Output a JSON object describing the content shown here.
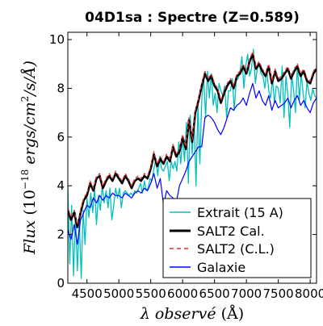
{
  "chart_data": {
    "type": "line",
    "title": "04D1sa : Spectre (Z=0.589)",
    "xlabel": "λ observé (Å)",
    "ylabel": "Flux (10^-18 ergs/cm²/s/Å)",
    "ylabel_parts": {
      "flux": "Flux",
      "open": "(10",
      "exponent": "−18",
      "unit": "ergs/cm",
      "unit_sup": "2",
      "rest": "/s/Å)"
    },
    "xlabel_parts": {
      "lambda": "λ",
      "word": "observé",
      "unit": "(Å)"
    },
    "xlim": [
      4200,
      8100
    ],
    "ylim": [
      0,
      10.3
    ],
    "xticks": [
      4500,
      5000,
      5500,
      6000,
      6500,
      7000,
      7500,
      8000
    ],
    "xtick_labels": [
      "4500",
      "5000",
      "5500",
      "6000",
      "6500",
      "7000",
      "7500",
      "8000"
    ],
    "yticks": [
      0,
      2,
      4,
      6,
      8,
      10
    ],
    "ytick_labels": [
      "0",
      "2",
      "4",
      "6",
      "8",
      "10"
    ],
    "legend_position": "lower-right",
    "series": [
      {
        "name": "Extrait (15 A)",
        "color": "#00bfbf",
        "style": "solid",
        "x": [
          4200,
          4230,
          4260,
          4290,
          4320,
          4350,
          4380,
          4410,
          4440,
          4470,
          4500,
          4530,
          4560,
          4590,
          4620,
          4650,
          4680,
          4710,
          4740,
          4770,
          4800,
          4830,
          4860,
          4890,
          4920,
          4950,
          4980,
          5010,
          5040,
          5070,
          5100,
          5130,
          5160,
          5190,
          5220,
          5250,
          5280,
          5310,
          5340,
          5370,
          5400,
          5430,
          5460,
          5490,
          5520,
          5550,
          5580,
          5610,
          5640,
          5670,
          5700,
          5730,
          5760,
          5790,
          5820,
          5850,
          5880,
          5910,
          5940,
          5970,
          6000,
          6030,
          6060,
          6090,
          6120,
          6150,
          6180,
          6210,
          6240,
          6270,
          6300,
          6330,
          6360,
          6390,
          6420,
          6450,
          6480,
          6510,
          6540,
          6570,
          6600,
          6630,
          6660,
          6690,
          6720,
          6750,
          6780,
          6810,
          6840,
          6870,
          6900,
          6930,
          6960,
          6990,
          7020,
          7050,
          7080,
          7110,
          7140,
          7170,
          7200,
          7230,
          7260,
          7290,
          7320,
          7350,
          7380,
          7410,
          7440,
          7470,
          7500,
          7530,
          7560,
          7590,
          7620,
          7650,
          7680,
          7710,
          7740,
          7770,
          7800,
          7830,
          7860,
          7890,
          7920,
          7950,
          7980,
          8010,
          8040,
          8070,
          8100
        ],
        "values": [
          4.0,
          0.8,
          3.2,
          0.3,
          2.9,
          0.5,
          2.6,
          0.2,
          3.0,
          1.6,
          3.5,
          2.7,
          3.7,
          2.9,
          3.9,
          2.4,
          3.6,
          3.0,
          4.0,
          3.3,
          3.8,
          3.1,
          3.9,
          2.6,
          3.2,
          3.9,
          3.5,
          3.9,
          3.1,
          3.7,
          3.8,
          3.7,
          3.6,
          3.7,
          3.6,
          3.8,
          3.7,
          3.9,
          4.1,
          3.7,
          4.2,
          3.8,
          3.9,
          4.3,
          4.2,
          4.7,
          5.1,
          4.4,
          5.2,
          4.7,
          4.6,
          4.8,
          5.0,
          4.2,
          5.0,
          4.7,
          5.0,
          4.6,
          5.8,
          4.9,
          6.0,
          5.0,
          6.6,
          4.1,
          6.9,
          5.3,
          6.7,
          4.0,
          7.3,
          4.9,
          7.5,
          8.5,
          6.8,
          8.7,
          7.6,
          8.6,
          7.3,
          7.8,
          7.0,
          8.2,
          7.9,
          7.7,
          8.1,
          6.8,
          7.9,
          7.9,
          8.4,
          7.1,
          8.3,
          8.4,
          8.7,
          9.3,
          8.0,
          8.9,
          9.4,
          8.5,
          8.8,
          9.6,
          8.2,
          8.8,
          9.0,
          8.6,
          8.5,
          8.0,
          8.8,
          7.9,
          7.6,
          8.4,
          7.4,
          8.1,
          8.0,
          7.4,
          8.9,
          6.8,
          8.5,
          7.7,
          6.4,
          8.6,
          7.9,
          7.0,
          9.0,
          7.5,
          8.6,
          7.8,
          7.2,
          8.3,
          7.8,
          7.5,
          8.0,
          7.7,
          7.6
        ],
        "note": ""
      },
      {
        "name": "SALT2 Cal.",
        "color": "#000000",
        "style": "solid",
        "x": [
          4200,
          4250,
          4300,
          4350,
          4400,
          4450,
          4500,
          4550,
          4600,
          4650,
          4700,
          4750,
          4800,
          4850,
          4900,
          4950,
          5000,
          5050,
          5100,
          5150,
          5200,
          5250,
          5300,
          5350,
          5400,
          5450,
          5500,
          5550,
          5600,
          5650,
          5700,
          5750,
          5800,
          5850,
          5900,
          5950,
          6000,
          6050,
          6100,
          6150,
          6200,
          6250,
          6300,
          6350,
          6400,
          6450,
          6500,
          6550,
          6600,
          6650,
          6700,
          6750,
          6800,
          6850,
          6900,
          6950,
          7000,
          7050,
          7100,
          7150,
          7200,
          7250,
          7300,
          7350,
          7400,
          7450,
          7500,
          7550,
          7600,
          7650,
          7700,
          7750,
          7800,
          7850,
          7900,
          7950,
          8000,
          8050,
          8100
        ],
        "values": [
          3.0,
          2.6,
          2.9,
          2.3,
          2.9,
          3.4,
          3.6,
          4.1,
          3.8,
          4.3,
          4.4,
          3.9,
          4.2,
          4.4,
          4.2,
          4.5,
          4.3,
          4.1,
          4.4,
          4.2,
          3.9,
          4.2,
          4.3,
          4.2,
          4.4,
          4.3,
          4.7,
          5.3,
          4.8,
          5.1,
          4.9,
          5.2,
          5.0,
          5.6,
          5.2,
          5.4,
          6.0,
          5.5,
          6.7,
          5.8,
          7.0,
          7.5,
          8.1,
          8.6,
          8.3,
          8.5,
          8.1,
          7.9,
          7.4,
          7.8,
          8.1,
          8.3,
          8.0,
          8.5,
          8.6,
          8.9,
          8.6,
          9.1,
          9.4,
          8.8,
          9.0,
          8.7,
          8.5,
          8.9,
          8.2,
          8.7,
          8.3,
          8.4,
          8.6,
          8.8,
          8.4,
          8.7,
          8.9,
          8.5,
          8.7,
          8.3,
          8.2,
          8.6,
          8.8
        ],
        "note": ""
      },
      {
        "name": "SALT2 (C.L.)",
        "color": "#e03030",
        "style": "dashed",
        "x": [
          4200,
          4250,
          4300,
          4350,
          4400,
          4450,
          4500,
          4550,
          4600,
          4650,
          4700,
          4750,
          4800,
          4850,
          4900,
          4950,
          5000,
          5050,
          5100,
          5150,
          5200,
          5250,
          5300,
          5350,
          5400,
          5450,
          5500,
          5550,
          5600,
          5650,
          5700,
          5750,
          5800,
          5850,
          5900,
          5950,
          6000,
          6050,
          6100,
          6150,
          6200,
          6250,
          6300,
          6350,
          6400,
          6450,
          6500,
          6550,
          6600,
          6650,
          6700,
          6750,
          6800,
          6850,
          6900,
          6950,
          7000,
          7050,
          7100,
          7150,
          7200,
          7250,
          7300,
          7350,
          7400,
          7450,
          7500,
          7550,
          7600,
          7650,
          7700,
          7750,
          7800,
          7850,
          7900,
          7950,
          8000,
          8050,
          8100
        ],
        "values": [
          3.1,
          2.7,
          3.0,
          2.4,
          3.0,
          3.5,
          3.7,
          4.2,
          3.9,
          4.4,
          4.5,
          4.0,
          4.3,
          4.5,
          4.3,
          4.6,
          4.4,
          4.2,
          4.5,
          4.3,
          4.0,
          4.3,
          4.4,
          4.3,
          4.5,
          4.4,
          4.8,
          5.4,
          4.9,
          5.2,
          5.0,
          5.3,
          5.1,
          5.7,
          5.3,
          5.5,
          6.1,
          5.6,
          6.8,
          5.9,
          7.1,
          7.6,
          8.2,
          8.7,
          8.4,
          8.6,
          8.2,
          8.0,
          7.5,
          7.9,
          8.2,
          8.4,
          8.1,
          8.6,
          8.7,
          9.0,
          8.7,
          9.2,
          9.5,
          8.9,
          9.1,
          8.8,
          8.6,
          9.0,
          8.3,
          8.8,
          8.4,
          8.5,
          8.7,
          8.9,
          8.5,
          8.8,
          9.0,
          8.6,
          8.8,
          8.4,
          8.3,
          8.7,
          8.9
        ],
        "note": ""
      },
      {
        "name": "Galaxie",
        "color": "#0000ff",
        "style": "solid",
        "x": [
          4200,
          4250,
          4300,
          4350,
          4400,
          4450,
          4500,
          4550,
          4600,
          4650,
          4700,
          4750,
          4800,
          4850,
          4900,
          4950,
          5000,
          5050,
          5100,
          5150,
          5200,
          5250,
          5300,
          5350,
          5400,
          5450,
          5500,
          5550,
          5600,
          5650,
          5700,
          5750,
          5800,
          5850,
          5900,
          5950,
          6000,
          6050,
          6100,
          6150,
          6200,
          6250,
          6300,
          6350,
          6400,
          6450,
          6500,
          6550,
          6600,
          6650,
          6700,
          6750,
          6800,
          6850,
          6900,
          6950,
          7000,
          7050,
          7100,
          7150,
          7200,
          7250,
          7300,
          7350,
          7400,
          7450,
          7500,
          7550,
          7600,
          7650,
          7700,
          7750,
          7800,
          7850,
          7900,
          7950,
          8000,
          8050,
          8100
        ],
        "values": [
          2.2,
          1.8,
          2.4,
          1.6,
          2.6,
          2.9,
          3.2,
          3.1,
          3.5,
          3.3,
          3.6,
          3.4,
          3.6,
          3.5,
          3.7,
          3.6,
          3.6,
          3.5,
          3.7,
          3.6,
          3.5,
          3.7,
          3.8,
          3.7,
          3.9,
          3.8,
          4.1,
          4.5,
          3.9,
          4.3,
          3.2,
          3.8,
          3.6,
          3.5,
          3.3,
          4.0,
          4.3,
          4.6,
          5.0,
          5.2,
          5.4,
          5.6,
          5.6,
          6.8,
          6.9,
          6.8,
          6.6,
          6.3,
          6.1,
          6.4,
          6.8,
          7.2,
          7.1,
          7.3,
          7.4,
          7.6,
          7.3,
          7.8,
          8.2,
          7.6,
          7.9,
          7.5,
          7.3,
          7.7,
          7.1,
          7.5,
          7.2,
          7.3,
          7.4,
          7.6,
          7.2,
          7.5,
          7.7,
          7.3,
          7.5,
          7.2,
          7.0,
          7.4,
          7.6
        ],
        "note": ""
      }
    ]
  }
}
